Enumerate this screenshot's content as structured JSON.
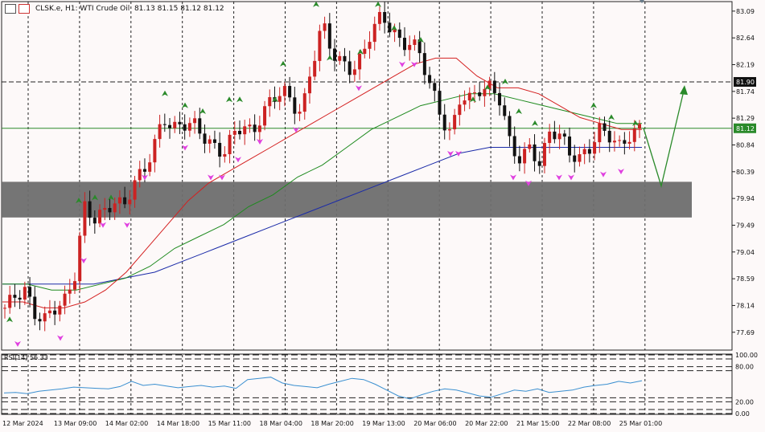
{
  "header": {
    "symbol_line": "CLSK.e, H1:  WTI Crude Oil",
    "ohlc": [
      "81.13",
      "81.15",
      "81.12",
      "81.12"
    ]
  },
  "rsi": {
    "label": "RSI(14) 56.33"
  },
  "colors": {
    "background": "#fdf9f9",
    "bull_candle": "#cc2222",
    "bear_candle": "#111111",
    "ma_fast": "#d42020",
    "ma_mid": "#1e8a1e",
    "ma_slow": "#1a2aa8",
    "zone": "#6e6e6e",
    "hline": "#2a8a2a",
    "rsi_line": "#3a8fd0",
    "arrow_up": "#2a8a2a",
    "arrow_down": "#e040e0"
  },
  "chart_data": {
    "type": "candlestick",
    "symbol": "CLSK.e",
    "timeframe": "H1",
    "ylim": [
      77.39,
      83.25
    ],
    "y_ticks": [
      "83.09",
      "82.64",
      "82.19",
      "81.74",
      "81.29",
      "80.84",
      "80.39",
      "79.94",
      "79.49",
      "79.04",
      "78.59",
      "78.14",
      "77.69"
    ],
    "x_ticks": [
      "12 Mar 2024",
      "13 Mar 09:00",
      "14 Mar 02:00",
      "14 Mar 18:00",
      "15 Mar 11:00",
      "18 Mar 04:00",
      "18 Mar 20:00",
      "19 Mar 13:00",
      "20 Mar 06:00",
      "20 Mar 22:00",
      "21 Mar 15:00",
      "22 Mar 08:00",
      "25 Mar 01:00"
    ],
    "price_labels": [
      {
        "value": 81.9,
        "text": "81.90"
      },
      {
        "value": 81.12,
        "text": "81.12"
      }
    ],
    "zone": [
      79.62,
      80.22
    ],
    "close_path": [
      78.1,
      78.3,
      78.4,
      78.0,
      77.9,
      78.1,
      78.2,
      78.6,
      79.8,
      79.6,
      79.7,
      79.9,
      79.8,
      80.2,
      80.4,
      80.8,
      81.3,
      81.1,
      81.2,
      81.2,
      81.0,
      80.8,
      80.7,
      81.0,
      81.2,
      81.0,
      81.4,
      81.6,
      81.8,
      81.5,
      81.4,
      82.2,
      82.9,
      82.4,
      82.2,
      82.1,
      82.3,
      82.8,
      83.0,
      82.8,
      82.5,
      82.6,
      82.3,
      81.8,
      81.3,
      81.0,
      81.7,
      81.6,
      81.8,
      81.8,
      81.6,
      80.8,
      80.6,
      80.8,
      80.5,
      81.1,
      81.0,
      80.7,
      80.6,
      80.8,
      81.1,
      81.0,
      80.8,
      81.0,
      81.1
    ],
    "series": [
      {
        "name": "MA fast",
        "values": [
          78.2,
          78.2,
          78.1,
          78.1,
          78.2,
          78.4,
          78.7,
          79.1,
          79.5,
          79.9,
          80.2,
          80.4,
          80.6,
          80.8,
          81.0,
          81.2,
          81.4,
          81.6,
          81.8,
          82.0,
          82.2,
          82.3,
          82.3,
          82.0,
          81.8,
          81.8,
          81.7,
          81.5,
          81.3,
          81.2,
          81.1,
          81.1
        ]
      },
      {
        "name": "MA mid",
        "values": [
          78.5,
          78.5,
          78.4,
          78.4,
          78.5,
          78.6,
          78.8,
          79.1,
          79.3,
          79.5,
          79.8,
          80.0,
          80.3,
          80.5,
          80.8,
          81.1,
          81.3,
          81.5,
          81.6,
          81.7,
          81.7,
          81.6,
          81.5,
          81.4,
          81.3,
          81.2,
          81.2
        ]
      },
      {
        "name": "MA slow",
        "values": [
          78.5,
          78.5,
          78.5,
          78.5,
          78.6,
          78.7,
          78.9,
          79.1,
          79.3,
          79.5,
          79.7,
          79.9,
          80.1,
          80.3,
          80.5,
          80.7,
          80.8,
          80.8,
          80.8,
          80.8,
          80.8,
          80.8
        ]
      }
    ],
    "forecast": [
      81.12,
      80.15,
      81.75
    ],
    "rsi": {
      "levels": [
        100,
        80,
        20,
        0
      ],
      "tick_labels": [
        "100.00",
        "80.00",
        "20.00",
        "0.00"
      ],
      "values": [
        35,
        36,
        34,
        38,
        40,
        42,
        45,
        44,
        43,
        42,
        46,
        55,
        48,
        50,
        47,
        44,
        46,
        48,
        45,
        47,
        43,
        58,
        60,
        62,
        52,
        48,
        46,
        44,
        50,
        55,
        60,
        58,
        50,
        40,
        30,
        25,
        32,
        38,
        42,
        40,
        35,
        30,
        28,
        34,
        40,
        38,
        42,
        36,
        38,
        40,
        45,
        48,
        50,
        55,
        52,
        56
      ]
    }
  }
}
